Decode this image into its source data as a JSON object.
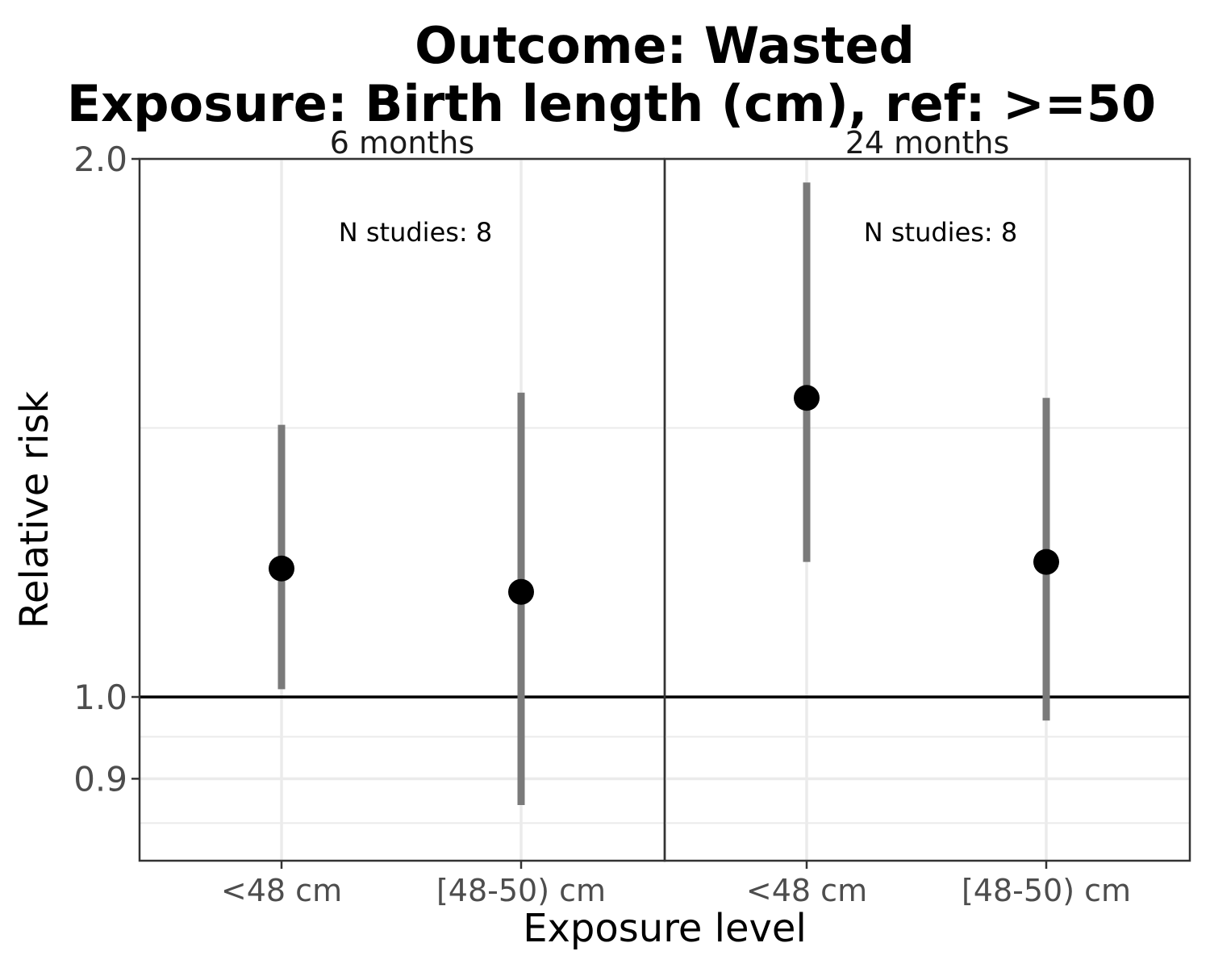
{
  "chart_data": {
    "type": "scatter",
    "title": "Outcome: Wasted",
    "subtitle": "Exposure: Birth length (cm), ref: >=50",
    "xlabel": "Exposure level",
    "ylabel": "Relative risk",
    "y_scale": "log",
    "ylim": [
      0.85,
      2.0
    ],
    "y_ticks": [
      {
        "value": 0.9,
        "label": "0.9"
      },
      {
        "value": 1.0,
        "label": "1.0"
      },
      {
        "value": 2.0,
        "label": "2.0"
      }
    ],
    "categories": [
      "<48 cm",
      "[48-50) cm"
    ],
    "reference_line": 1.0,
    "grid": true,
    "colors": {
      "point": "#000000",
      "ci": "#7a7a7a",
      "refline": "#000000",
      "grid": "#ebebeb",
      "border": "#333333"
    },
    "panels": [
      {
        "label": "6 months",
        "annotation": "N studies: 8",
        "points": [
          {
            "category": "<48 cm",
            "rr": 1.18,
            "ci_low": 1.01,
            "ci_high": 1.42
          },
          {
            "category": "[48-50) cm",
            "rr": 1.145,
            "ci_low": 0.87,
            "ci_high": 1.48
          }
        ]
      },
      {
        "label": "24 months",
        "annotation": "N studies: 8",
        "points": [
          {
            "category": "<48 cm",
            "rr": 1.47,
            "ci_low": 1.19,
            "ci_high": 1.94
          },
          {
            "category": "[48-50) cm",
            "rr": 1.19,
            "ci_low": 0.97,
            "ci_high": 1.47
          }
        ]
      }
    ]
  }
}
